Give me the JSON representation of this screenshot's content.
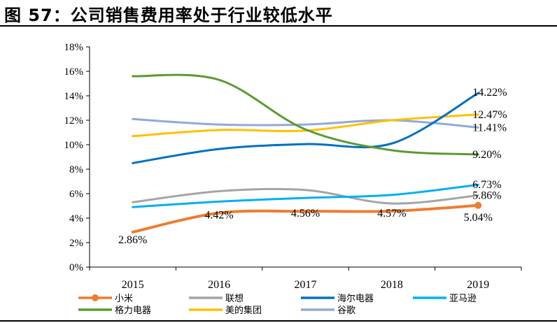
{
  "title": "图 57：公司销售费用率处于行业较低水平",
  "chart_data": {
    "type": "line",
    "title": "",
    "categories": [
      "2015",
      "2016",
      "2017",
      "2018",
      "2019"
    ],
    "ylim": [
      0,
      18
    ],
    "yticks": [
      "0%",
      "2%",
      "4%",
      "6%",
      "8%",
      "10%",
      "12%",
      "14%",
      "16%",
      "18%"
    ],
    "grid": false,
    "legend_position": "bottom",
    "series": [
      {
        "name": "小米",
        "color": "#ED7D31",
        "values": [
          2.86,
          4.42,
          4.56,
          4.57,
          5.04
        ],
        "labels": [
          "2.86%",
          "4.42%",
          "4.56%",
          "4.57%",
          "5.04%"
        ],
        "marker": true
      },
      {
        "name": "联想",
        "color": "#A5A5A5",
        "values": [
          5.3,
          6.2,
          6.3,
          5.2,
          5.86
        ],
        "labels": [
          "",
          "",
          "",
          "",
          "5.86%"
        ]
      },
      {
        "name": "海尔电器",
        "color": "#0070C0",
        "values": [
          8.5,
          9.65,
          10.05,
          10.1,
          14.22
        ],
        "labels": [
          "",
          "",
          "",
          "",
          "14.22%"
        ]
      },
      {
        "name": "亚马逊",
        "color": "#00B0F0",
        "values": [
          4.9,
          5.35,
          5.65,
          5.9,
          6.73
        ],
        "labels": [
          "",
          "",
          "",
          "",
          "6.73%"
        ]
      },
      {
        "name": "格力电器",
        "color": "#5B9A32",
        "values": [
          15.6,
          15.3,
          11.25,
          9.55,
          9.2
        ],
        "labels": [
          "",
          "",
          "",
          "",
          "9.20%"
        ]
      },
      {
        "name": "美的集团",
        "color": "#FFC000",
        "values": [
          10.7,
          11.2,
          11.15,
          12.0,
          12.47
        ],
        "labels": [
          "",
          "",
          "",
          "",
          "12.47%"
        ]
      },
      {
        "name": "谷歌",
        "color": "#8FAADC",
        "values": [
          12.1,
          11.65,
          11.65,
          12.0,
          11.41
        ],
        "labels": [
          "",
          "",
          "",
          "",
          "11.41%"
        ]
      }
    ]
  }
}
